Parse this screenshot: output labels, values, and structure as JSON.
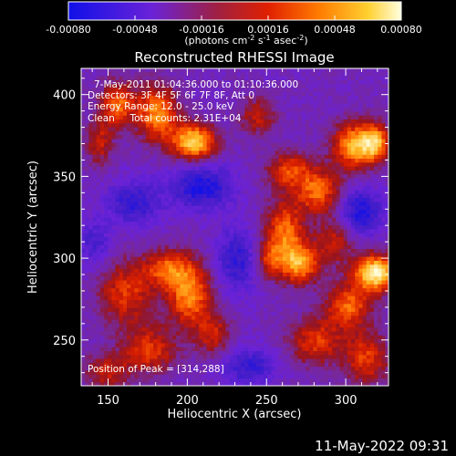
{
  "chart_data": {
    "type": "heatmap",
    "title": "Reconstructed RHESSI Image",
    "xlabel": "Heliocentric X (arcsec)",
    "ylabel": "Heliocentric Y (arcsec)",
    "xlim": [
      133,
      327
    ],
    "ylim": [
      222,
      416
    ],
    "x_ticks": [
      150,
      200,
      250,
      300
    ],
    "y_ticks": [
      250,
      300,
      350,
      400
    ],
    "colorbar": {
      "range": [
        -0.0008,
        0.0008
      ],
      "ticks": [
        "-0.00080",
        "-0.00048",
        "-0.00016",
        "0.00016",
        "0.00048",
        "0.00080"
      ],
      "label_main": "(photons cm",
      "label_exp1": "-2",
      "label_mid": " s",
      "label_exp2": "-1",
      "label_mid2": " asec",
      "label_exp3": "-2",
      "label_end": ")",
      "colors": [
        "#1010e8",
        "#7a28d0",
        "#b02020",
        "#ff5a00",
        "#ffd030",
        "#ffffe0"
      ]
    },
    "info_lines": [
      "7-May-2011 01:04:36.000 to 01:10:36.000",
      "Detectors: 3F 4F 5F 6F 7F 8F, Att 0",
      "Energy Range: 12.0 - 25.0 keV",
      "Clean     Total counts: 2.31E+04"
    ],
    "peak_label": "Position of Peak = [314,288]",
    "grid": false,
    "blobs": [
      {
        "x": 203,
        "y": 372,
        "amp": 0.0009,
        "sx": 10,
        "sy": 8
      },
      {
        "x": 180,
        "y": 390,
        "amp": 0.0007,
        "sx": 9,
        "sy": 12
      },
      {
        "x": 155,
        "y": 395,
        "amp": 0.0006,
        "sx": 8,
        "sy": 10
      },
      {
        "x": 143,
        "y": 372,
        "amp": 0.0004,
        "sx": 6,
        "sy": 10
      },
      {
        "x": 243,
        "y": 388,
        "amp": 0.0004,
        "sx": 8,
        "sy": 8
      },
      {
        "x": 263,
        "y": 355,
        "amp": 0.0005,
        "sx": 10,
        "sy": 8
      },
      {
        "x": 282,
        "y": 342,
        "amp": 0.0006,
        "sx": 10,
        "sy": 10
      },
      {
        "x": 305,
        "y": 370,
        "amp": 0.0008,
        "sx": 10,
        "sy": 10
      },
      {
        "x": 318,
        "y": 372,
        "amp": 0.0006,
        "sx": 6,
        "sy": 8
      },
      {
        "x": 260,
        "y": 318,
        "amp": 0.0006,
        "sx": 9,
        "sy": 14
      },
      {
        "x": 270,
        "y": 298,
        "amp": 0.0007,
        "sx": 9,
        "sy": 9
      },
      {
        "x": 292,
        "y": 312,
        "amp": 0.0004,
        "sx": 8,
        "sy": 10
      },
      {
        "x": 250,
        "y": 300,
        "amp": 0.0004,
        "sx": 6,
        "sy": 8
      },
      {
        "x": 318,
        "y": 292,
        "amp": 0.001,
        "sx": 10,
        "sy": 8
      },
      {
        "x": 300,
        "y": 272,
        "amp": 0.0006,
        "sx": 10,
        "sy": 9
      },
      {
        "x": 280,
        "y": 250,
        "amp": 0.0005,
        "sx": 12,
        "sy": 10
      },
      {
        "x": 312,
        "y": 240,
        "amp": 0.0005,
        "sx": 10,
        "sy": 12
      },
      {
        "x": 200,
        "y": 280,
        "amp": 0.0007,
        "sx": 10,
        "sy": 14
      },
      {
        "x": 185,
        "y": 295,
        "amp": 0.0005,
        "sx": 10,
        "sy": 8
      },
      {
        "x": 160,
        "y": 280,
        "amp": 0.0005,
        "sx": 12,
        "sy": 14
      },
      {
        "x": 175,
        "y": 245,
        "amp": 0.0005,
        "sx": 12,
        "sy": 10
      },
      {
        "x": 215,
        "y": 255,
        "amp": 0.0004,
        "sx": 8,
        "sy": 10
      },
      {
        "x": 148,
        "y": 232,
        "amp": 0.0004,
        "sx": 10,
        "sy": 8
      },
      {
        "x": 208,
        "y": 345,
        "amp": -0.0005,
        "sx": 14,
        "sy": 10
      },
      {
        "x": 165,
        "y": 335,
        "amp": -0.0004,
        "sx": 12,
        "sy": 10
      },
      {
        "x": 230,
        "y": 300,
        "amp": -0.0004,
        "sx": 10,
        "sy": 14
      },
      {
        "x": 308,
        "y": 330,
        "amp": -0.0005,
        "sx": 10,
        "sy": 10
      },
      {
        "x": 238,
        "y": 235,
        "amp": -0.0004,
        "sx": 12,
        "sy": 8
      },
      {
        "x": 140,
        "y": 310,
        "amp": -0.0003,
        "sx": 8,
        "sy": 10
      }
    ]
  },
  "footer": {
    "datestamp": "11-May-2022 09:31"
  }
}
